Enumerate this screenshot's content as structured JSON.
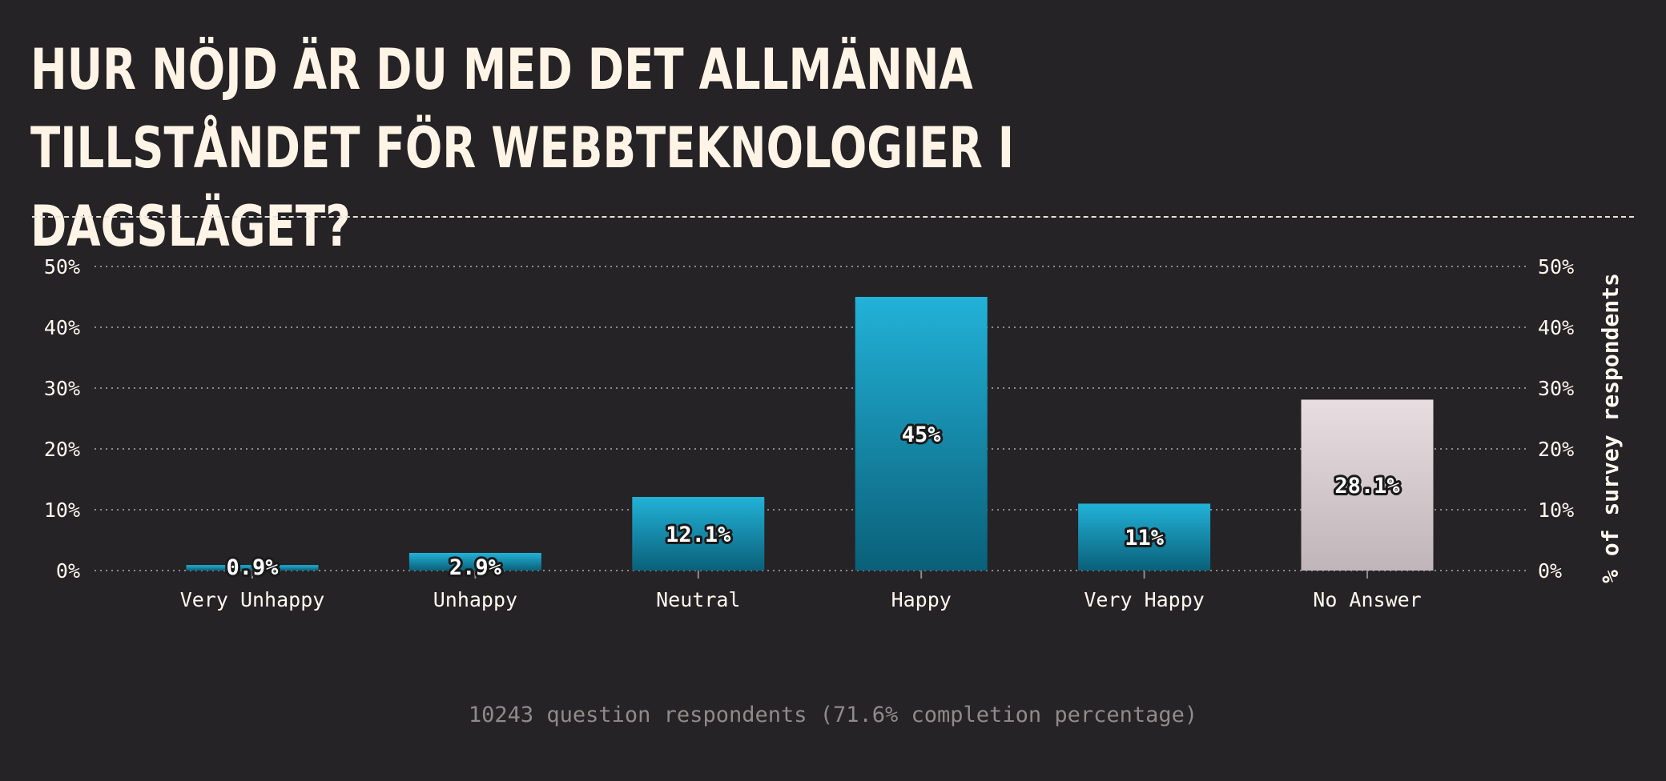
{
  "title": "Hur nöjd är du med det allmänna tillståndet för webbteknologier i dagsläget?",
  "footer": "10243 question respondents (71.6% completion percentage)",
  "colors": {
    "background": "#252326",
    "bar_top": "#22b2d8",
    "bar_bottom": "#0a6079",
    "no_answer_top": "#e8dde0",
    "no_answer_bottom": "#c0b5b9",
    "text": "#fff8ee"
  },
  "chart_data": {
    "type": "bar",
    "categories": [
      "Very Unhappy",
      "Unhappy",
      "Neutral",
      "Happy",
      "Very Happy",
      "No Answer"
    ],
    "values": [
      0.9,
      2.9,
      12.1,
      45,
      11,
      28.1
    ],
    "data_labels": [
      "0.9%",
      "2.9%",
      "12.1%",
      "45%",
      "11%",
      "28.1%"
    ],
    "ylabel": "% of survey respondents",
    "ylim": [
      0,
      50
    ],
    "yticks": [
      "0%",
      "10%",
      "20%",
      "30%",
      "40%",
      "50%"
    ],
    "grid": true
  }
}
